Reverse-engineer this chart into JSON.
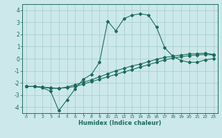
{
  "xlabel": "Humidex (Indice chaleur)",
  "bg_color": "#cce8ea",
  "grid_color": "#aacfd2",
  "line_color": "#1a6b5a",
  "xlim": [
    -0.5,
    23.5
  ],
  "ylim": [
    -4.5,
    4.5
  ],
  "xticks": [
    0,
    1,
    2,
    3,
    4,
    5,
    6,
    7,
    8,
    9,
    10,
    11,
    12,
    13,
    14,
    15,
    16,
    17,
    18,
    19,
    20,
    21,
    22,
    23
  ],
  "yticks": [
    -4,
    -3,
    -2,
    -1,
    0,
    1,
    2,
    3,
    4
  ],
  "curve1_x": [
    0,
    1,
    2,
    3,
    4,
    5,
    6,
    7,
    8,
    9,
    10,
    11,
    12,
    13,
    14,
    15,
    16,
    17,
    18,
    19,
    20,
    21,
    22,
    23
  ],
  "curve1_y": [
    -2.3,
    -2.3,
    -2.4,
    -2.7,
    -4.3,
    -3.4,
    -2.5,
    -1.7,
    -1.3,
    -0.3,
    3.1,
    2.3,
    3.3,
    3.6,
    3.7,
    3.6,
    2.6,
    0.9,
    0.2,
    -0.15,
    -0.3,
    -0.3,
    -0.1,
    0.0
  ],
  "curve2_x": [
    0,
    1,
    2,
    3,
    4,
    5,
    6,
    7,
    8,
    9,
    10,
    11,
    12,
    13,
    14,
    15,
    16,
    17,
    18,
    19,
    20,
    21,
    22,
    23
  ],
  "curve2_y": [
    -2.3,
    -2.3,
    -2.35,
    -2.4,
    -2.45,
    -2.4,
    -2.3,
    -2.1,
    -1.9,
    -1.7,
    -1.5,
    -1.3,
    -1.1,
    -0.9,
    -0.7,
    -0.5,
    -0.3,
    -0.1,
    0.05,
    0.15,
    0.25,
    0.3,
    0.35,
    0.3
  ],
  "curve3_x": [
    0,
    1,
    2,
    3,
    4,
    5,
    6,
    7,
    8,
    9,
    10,
    11,
    12,
    13,
    14,
    15,
    16,
    17,
    18,
    19,
    20,
    21,
    22,
    23
  ],
  "curve3_y": [
    -2.3,
    -2.3,
    -2.35,
    -2.45,
    -2.45,
    -2.35,
    -2.15,
    -1.95,
    -1.75,
    -1.5,
    -1.25,
    -1.0,
    -0.8,
    -0.6,
    -0.45,
    -0.25,
    -0.05,
    0.1,
    0.2,
    0.3,
    0.38,
    0.42,
    0.45,
    0.35
  ]
}
